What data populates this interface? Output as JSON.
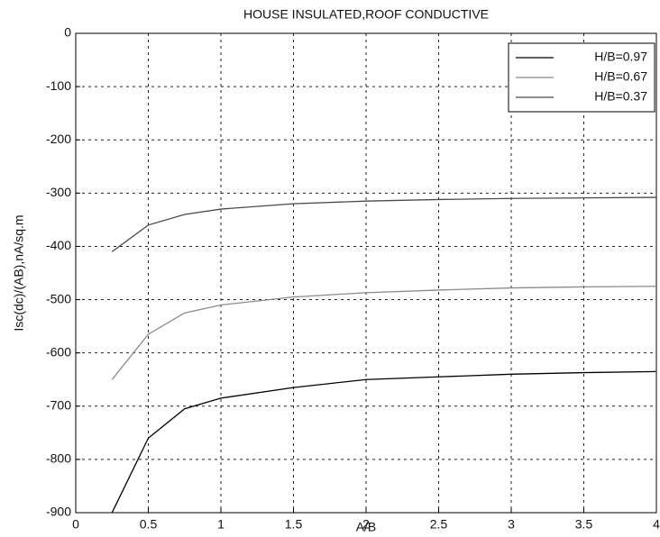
{
  "chart_data": {
    "type": "line",
    "title": "HOUSE INSULATED,ROOF CONDUCTIVE",
    "x_label": "A/B",
    "y_label": "Isc(dc)/(AB),nA/sq.m",
    "x": [
      0.25,
      0.5,
      0.75,
      1,
      1.5,
      2,
      2.5,
      3,
      3.5,
      4
    ],
    "series": [
      {
        "name": "H/B=0.97",
        "color": "#000000",
        "values": [
          -900,
          -760,
          -705,
          -685,
          -665,
          -650,
          -645,
          -640,
          -637,
          -635
        ]
      },
      {
        "name": "H/B=0.67",
        "color": "#8a8a8a",
        "values": [
          -650,
          -565,
          -525,
          -510,
          -495,
          -487,
          -482,
          -478,
          -476,
          -475
        ]
      },
      {
        "name": "H/B=0.37",
        "color": "#4a4a4a",
        "values": [
          -410,
          -360,
          -340,
          -330,
          -320,
          -315,
          -312,
          -310,
          -309,
          -308
        ]
      }
    ],
    "xlim": [
      0,
      4
    ],
    "xticks": [
      0,
      0.5,
      1,
      1.5,
      2,
      2.5,
      3,
      3.5,
      4
    ],
    "ylim": [
      -900,
      0
    ],
    "yticks": [
      0,
      -100,
      -200,
      -300,
      -400,
      -500,
      -600,
      -700,
      -800,
      -900
    ],
    "grid": true,
    "legend": "upper right"
  }
}
